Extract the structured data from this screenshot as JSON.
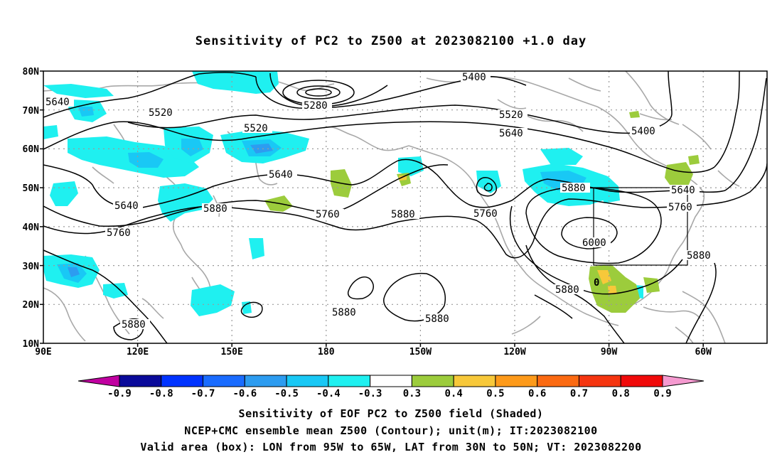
{
  "title": "Sensitivity of PC2 to Z500 at 2023082100 +1.0 day",
  "lat_labels": [
    "80N",
    "70N",
    "60N",
    "50N",
    "40N",
    "30N",
    "20N",
    "10N"
  ],
  "lon_labels": [
    "90E",
    "120E",
    "150E",
    "180",
    "150W",
    "120W",
    "90W",
    "60W"
  ],
  "contour_labels": [
    "5640",
    "5520",
    "5280",
    "5400",
    "5520",
    "5640",
    "5400",
    "5520",
    "5640",
    "5640",
    "5640",
    "5760",
    "5880",
    "5760",
    "5880",
    "5760",
    "5880",
    "6000",
    "5760",
    "5880",
    "5880",
    "5880",
    "5880",
    "5880"
  ],
  "extra_label": "0",
  "colorbar": {
    "ticks": [
      "-0.9",
      "-0.8",
      "-0.7",
      "-0.6",
      "-0.5",
      "-0.4",
      "-0.3",
      "0.3",
      "0.4",
      "0.5",
      "0.6",
      "0.7",
      "0.8",
      "0.9"
    ],
    "colors": [
      "#0a0a9a",
      "#0033ff",
      "#1a6cff",
      "#2d9cf0",
      "#19c8f5",
      "#1ff0f0",
      "#ffffff",
      "#9ccc3c",
      "#f7c83a",
      "#fd9a1a",
      "#fb6a12",
      "#f53510",
      "#f00a0a"
    ],
    "low_end_color": "#c000a0",
    "high_end_color": "#f59ad0"
  },
  "box": {
    "lon": "95W to 65W",
    "lat": "30N to 50N"
  },
  "captions": [
    "Sensitivity of EOF PC2 to Z500 field (Shaded)",
    "NCEP+CMC ensemble mean Z500 (Contour); unit(m); IT:2023082100",
    "Valid area (box): LON from 95W to 65W, LAT from 30N to 50N; VT: 2023082200"
  ]
}
